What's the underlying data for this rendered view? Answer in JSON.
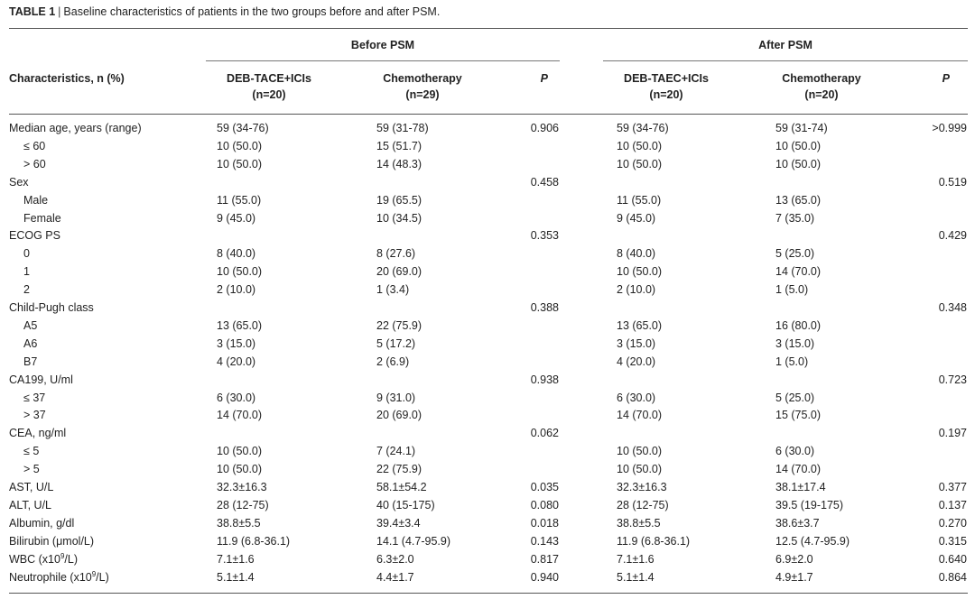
{
  "table": {
    "title_label": "TABLE 1",
    "title_sep": "|",
    "title_text": "Baseline characteristics of patients in the two groups before and after PSM.",
    "group_before": "Before PSM",
    "group_after": "After PSM",
    "col_characteristics": "Characteristics, n (%)",
    "col_b1_name": "DEB-TACE+ICIs",
    "col_b1_n": "(n=20)",
    "col_b2_name": "Chemotherapy",
    "col_b2_n": "(n=29)",
    "col_p": "P",
    "col_a1_name": "DEB-TAEC+ICIs",
    "col_a1_n": "(n=20)",
    "col_a2_name": "Chemotherapy",
    "col_a2_n": "(n=20)",
    "rows": [
      {
        "label": "Median age, years  (range)",
        "indent": false,
        "b1": "59 (34-76)",
        "b2": "59 (31-78)",
        "p1": "0.906",
        "a1": "59 (34-76)",
        "a2": "59 (31-74)",
        "p2": ">0.999"
      },
      {
        "label": "≤ 60",
        "indent": true,
        "b1": "10 (50.0)",
        "b2": "15 (51.7)",
        "p1": "",
        "a1": "10 (50.0)",
        "a2": "10 (50.0)",
        "p2": ""
      },
      {
        "label": "> 60",
        "indent": true,
        "b1": "10 (50.0)",
        "b2": "14 (48.3)",
        "p1": "",
        "a1": "10 (50.0)",
        "a2": "10 (50.0)",
        "p2": ""
      },
      {
        "label": "Sex",
        "indent": false,
        "b1": "",
        "b2": "",
        "p1": "0.458",
        "a1": "",
        "a2": "",
        "p2": "0.519"
      },
      {
        "label": "Male",
        "indent": true,
        "b1": "11 (55.0)",
        "b2": "19 (65.5)",
        "p1": "",
        "a1": "11 (55.0)",
        "a2": "13 (65.0)",
        "p2": ""
      },
      {
        "label": "Female",
        "indent": true,
        "b1": "9 (45.0)",
        "b2": "10 (34.5)",
        "p1": "",
        "a1": "9 (45.0)",
        "a2": "7 (35.0)",
        "p2": ""
      },
      {
        "label": "ECOG PS",
        "indent": false,
        "b1": "",
        "b2": "",
        "p1": "0.353",
        "a1": "",
        "a2": "",
        "p2": "0.429"
      },
      {
        "label": "0",
        "indent": true,
        "b1": "8 (40.0)",
        "b2": "8 (27.6)",
        "p1": "",
        "a1": "8 (40.0)",
        "a2": "5 (25.0)",
        "p2": ""
      },
      {
        "label": "1",
        "indent": true,
        "b1": "10 (50.0)",
        "b2": "20 (69.0)",
        "p1": "",
        "a1": "10 (50.0)",
        "a2": "14 (70.0)",
        "p2": ""
      },
      {
        "label": "2",
        "indent": true,
        "b1": "2 (10.0)",
        "b2": "1 (3.4)",
        "p1": "",
        "a1": "2 (10.0)",
        "a2": "1 (5.0)",
        "p2": ""
      },
      {
        "label": "Child-Pugh class",
        "indent": false,
        "b1": "",
        "b2": "",
        "p1": "0.388",
        "a1": "",
        "a2": "",
        "p2": "0.348"
      },
      {
        "label": "A5",
        "indent": true,
        "b1": "13 (65.0)",
        "b2": "22 (75.9)",
        "p1": "",
        "a1": "13 (65.0)",
        "a2": "16 (80.0)",
        "p2": ""
      },
      {
        "label": "A6",
        "indent": true,
        "b1": "3 (15.0)",
        "b2": "5 (17.2)",
        "p1": "",
        "a1": "3 (15.0)",
        "a2": "3 (15.0)",
        "p2": ""
      },
      {
        "label": "B7",
        "indent": true,
        "b1": "4 (20.0)",
        "b2": "2  (6.9)",
        "p1": "",
        "a1": "4 (20.0)",
        "a2": "1 (5.0)",
        "p2": ""
      },
      {
        "label": "CA199, U/ml",
        "indent": false,
        "b1": "",
        "b2": "",
        "p1": "0.938",
        "a1": "",
        "a2": "",
        "p2": "0.723"
      },
      {
        "label": "≤ 37",
        "indent": true,
        "b1": "6 (30.0)",
        "b2": "9 (31.0)",
        "p1": "",
        "a1": "6 (30.0)",
        "a2": "5 (25.0)",
        "p2": ""
      },
      {
        "label": "> 37",
        "indent": true,
        "b1": "14 (70.0)",
        "b2": "20 (69.0)",
        "p1": "",
        "a1": "14 (70.0)",
        "a2": "15 (75.0)",
        "p2": ""
      },
      {
        "label": "CEA, ng/ml",
        "indent": false,
        "b1": "",
        "b2": "",
        "p1": "0.062",
        "a1": "",
        "a2": "",
        "p2": "0.197"
      },
      {
        "label": "≤ 5",
        "indent": true,
        "b1": "10 (50.0)",
        "b2": "7 (24.1)",
        "p1": "",
        "a1": "10 (50.0)",
        "a2": "6 (30.0)",
        "p2": ""
      },
      {
        "label": "> 5",
        "indent": true,
        "b1": "10 (50.0)",
        "b2": "22 (75.9)",
        "p1": "",
        "a1": "10 (50.0)",
        "a2": "14 (70.0)",
        "p2": ""
      },
      {
        "label": "AST, U/L",
        "indent": false,
        "b1": "32.3±16.3",
        "b2": "58.1±54.2",
        "p1": "0.035",
        "a1": "32.3±16.3",
        "a2": "38.1±17.4",
        "p2": "0.377"
      },
      {
        "label": "ALT, U/L",
        "indent": false,
        "b1": "28 (12-75)",
        "b2": "40 (15-175)",
        "p1": "0.080",
        "a1": "28 (12-75)",
        "a2": "39.5 (19-175)",
        "p2": "0.137"
      },
      {
        "label": "Albumin, g/dl",
        "indent": false,
        "b1": "38.8±5.5",
        "b2": "39.4±3.4",
        "p1": "0.018",
        "a1": "38.8±5.5",
        "a2": "38.6±3.7",
        "p2": "0.270"
      },
      {
        "label": "Bilirubin  (μmol/L)",
        "indent": false,
        "b1": "11.9 (6.8-36.1)",
        "b2": "14.1 (4.7-95.9)",
        "p1": "0.143",
        "a1": "11.9 (6.8-36.1)",
        "a2": "12.5 (4.7-95.9)",
        "p2": "0.315"
      },
      {
        "label": "WBC  (x10",
        "sup": "9",
        "suffix": "/L)",
        "indent": false,
        "b1": "7.1±1.6",
        "b2": "6.3±2.0",
        "p1": "0.817",
        "a1": "7.1±1.6",
        "a2": "6.9±2.0",
        "p2": "0.640"
      },
      {
        "label": "Neutrophile  (x10",
        "sup": "9",
        "suffix": "/L)",
        "indent": false,
        "b1": "5.1±1.4",
        "b2": "4.4±1.7",
        "p1": "0.940",
        "a1": "5.1±1.4",
        "a2": "4.9±1.7",
        "p2": "0.864"
      }
    ]
  }
}
